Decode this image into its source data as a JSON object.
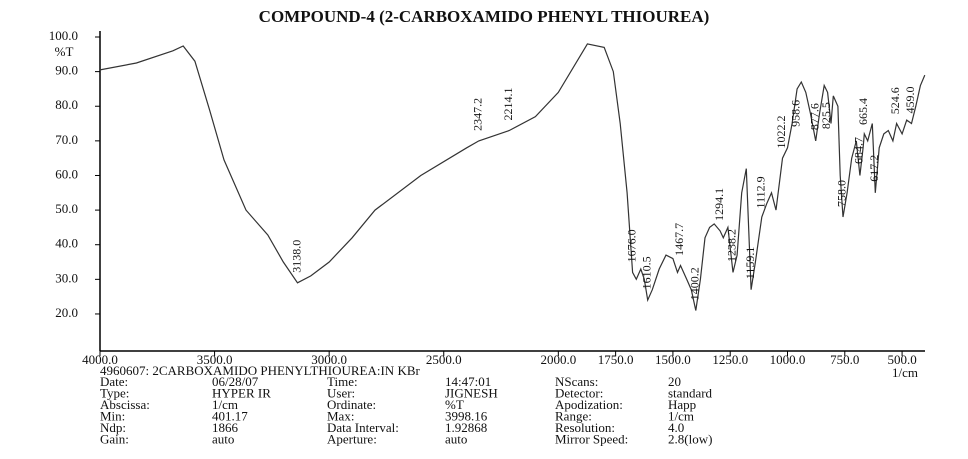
{
  "chart_data": {
    "type": "line",
    "title": "COMPOUND-4 (2-CARBOXAMIDO PHENYL THIOUREA)",
    "y_label": "%T",
    "x_label": "1/cm",
    "color": "#333333",
    "xlim": [
      4000,
      400
    ],
    "ylim": [
      9.3,
      100
    ],
    "xticks": [
      {
        "value": 4000,
        "label": "4000.0"
      },
      {
        "value": 3500,
        "label": "3500.0"
      },
      {
        "value": 3000,
        "label": "3000.0"
      },
      {
        "value": 2500,
        "label": "2500.0"
      },
      {
        "value": 2000,
        "label": "2000.0"
      },
      {
        "value": 1750,
        "label": "1750.0"
      },
      {
        "value": 1500,
        "label": "1500.0"
      },
      {
        "value": 1250,
        "label": "1250.0"
      },
      {
        "value": 1000,
        "label": "1000.0"
      },
      {
        "value": 750,
        "label": "750.0"
      },
      {
        "value": 500,
        "label": "500.0"
      }
    ],
    "yticks": [
      {
        "value": 20,
        "label": "20.0"
      },
      {
        "value": 30,
        "label": "30.0"
      },
      {
        "value": 40,
        "label": "40.0"
      },
      {
        "value": 50,
        "label": "50.0"
      },
      {
        "value": 60,
        "label": "60.0"
      },
      {
        "value": 70,
        "label": "70.0"
      },
      {
        "value": 80,
        "label": "80.0"
      },
      {
        "value": 90,
        "label": "90.0"
      },
      {
        "value": 100,
        "label": "100.0"
      }
    ],
    "x": [
      4000,
      3841,
      3682,
      3637,
      3586,
      3522,
      3459,
      3363,
      3268,
      3200,
      3138,
      3080,
      3000,
      2900,
      2800,
      2600,
      2400,
      2347,
      2214,
      2100,
      2000,
      1873,
      1800,
      1760,
      1730,
      1700,
      1676,
      1660,
      1640,
      1625,
      1610,
      1590,
      1560,
      1530,
      1500,
      1480,
      1467,
      1440,
      1420,
      1400,
      1380,
      1360,
      1340,
      1320,
      1294,
      1280,
      1260,
      1238,
      1220,
      1200,
      1180,
      1159,
      1140,
      1112,
      1090,
      1070,
      1050,
      1022,
      1000,
      980,
      958,
      940,
      920,
      900,
      877,
      860,
      840,
      825,
      810,
      800,
      780,
      770,
      758,
      740,
      720,
      700,
      684,
      670,
      665,
      650,
      630,
      617,
      600,
      580,
      560,
      540,
      524,
      500,
      480,
      459,
      440,
      420,
      401
    ],
    "values": [
      90.5,
      92.5,
      96,
      97.4,
      93,
      79,
      64.5,
      50,
      42.8,
      35,
      29,
      31,
      35,
      42,
      50,
      60,
      68,
      70,
      73,
      77,
      84,
      98,
      97,
      90,
      75,
      55,
      32,
      30,
      33,
      30,
      24,
      27,
      33,
      37,
      36,
      32,
      34,
      30,
      27,
      21,
      30,
      42,
      45,
      46,
      44,
      42,
      45,
      32,
      37,
      55,
      62,
      27,
      35,
      48,
      52,
      55,
      50,
      65,
      68,
      75,
      85,
      87,
      84,
      78,
      70,
      78,
      86,
      84,
      75,
      83,
      80,
      60,
      48,
      55,
      65,
      70,
      60,
      68,
      72,
      70,
      75,
      55,
      68,
      72,
      73,
      70,
      75,
      72,
      76,
      75,
      80,
      86,
      89
    ],
    "peaks": [
      {
        "value": 3138,
        "label": "3138.0"
      },
      {
        "value": 2347.2,
        "label": "2347.2"
      },
      {
        "value": 2214.1,
        "label": "2214.1"
      },
      {
        "value": 1676,
        "label": "1676.0"
      },
      {
        "value": 1610.5,
        "label": "1610.5"
      },
      {
        "value": 1467.7,
        "label": "1467.7"
      },
      {
        "value": 1400.2,
        "label": "1400.2"
      },
      {
        "value": 1294.1,
        "label": "1294.1"
      },
      {
        "value": 1238.2,
        "label": "1238.2"
      },
      {
        "value": 1159.1,
        "label": "1159.1"
      },
      {
        "value": 1112.9,
        "label": "1112.9"
      },
      {
        "value": 1022.2,
        "label": "1022.2"
      },
      {
        "value": 958.6,
        "label": "958.6"
      },
      {
        "value": 877.6,
        "label": "877.6"
      },
      {
        "value": 825.5,
        "label": "825.5"
      },
      {
        "value": 758,
        "label": "758.0"
      },
      {
        "value": 684.7,
        "label": "684.7"
      },
      {
        "value": 665.4,
        "label": "665.4"
      },
      {
        "value": 617.2,
        "label": "617.2"
      },
      {
        "value": 524.6,
        "label": "524.6"
      },
      {
        "value": 459,
        "label": "459.0"
      }
    ],
    "header": "4960607: 2CARBOXAMIDO PHENYLTHIOUREA:IN KBr",
    "info": [
      [
        "Date:",
        "06/28/07",
        "Time:",
        "14:47:01",
        "NScans:",
        "20"
      ],
      [
        "Type:",
        "HYPER IR",
        "User:",
        "JIGNESH",
        "Detector:",
        "standard"
      ],
      [
        "Abscissa:",
        "1/cm",
        "Ordinate:",
        "%T",
        "Apodization:",
        "Happ"
      ],
      [
        "Min:",
        "401.17",
        "Max:",
        "3998.16",
        "Range:",
        "1/cm"
      ],
      [
        "Ndp:",
        "1866",
        "Data Interval:",
        "1.92868",
        "Resolution:",
        "4.0"
      ],
      [
        "Gain:",
        "auto",
        "Aperture:",
        "auto",
        "Mirror Speed:",
        "2.8(low)"
      ]
    ]
  }
}
